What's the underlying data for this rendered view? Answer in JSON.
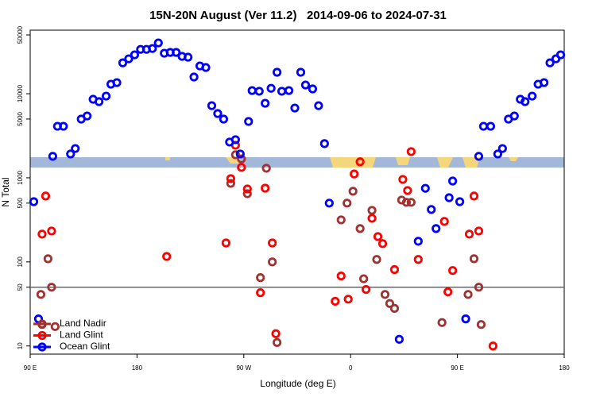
{
  "chart_data": {
    "type": "scatter",
    "title": "15N-20N August (Ver 11.2)   2014-09-06 to 2024-07-31",
    "xlabel": "Longitude (deg E)",
    "ylabel": "N Total",
    "xlim": [
      90,
      540
    ],
    "xticks": [
      {
        "value": 90,
        "label": "90 E"
      },
      180,
      {
        "value": 270,
        "label": "90 W"
      },
      {
        "value": 360,
        "label": "0"
      },
      {
        "value": 450,
        "label": "90 E"
      },
      {
        "value": 540,
        "label": "180"
      }
    ],
    "ylim": [
      8,
      57000
    ],
    "yscale": "log",
    "yticks": [
      10,
      50,
      100,
      500,
      1000,
      5000,
      10000,
      50000
    ],
    "hline": 50,
    "legend": "lower left",
    "series": [
      {
        "name": "Land Nadir",
        "color": "#a03232",
        "x": [
          99,
          105,
          108,
          100,
          111,
          259,
          263,
          268,
          273,
          289,
          294,
          284,
          298,
          352,
          357,
          362,
          368,
          371,
          378,
          382,
          389,
          393,
          397,
          403,
          407,
          411,
          437,
          459,
          464,
          468,
          470
        ],
        "values": [
          41,
          109,
          50,
          18,
          17,
          859,
          1880,
          1680,
          647,
          1300,
          100,
          65,
          11,
          316,
          500,
          692,
          249,
          63,
          410,
          107,
          41,
          32,
          28,
          544,
          511,
          511,
          19,
          41,
          109,
          50,
          18
        ]
      },
      {
        "name": "Land Glint",
        "color": "#ff0000",
        "x": [
          103,
          100,
          108,
          205,
          255,
          259,
          263,
          268,
          273,
          288,
          294,
          297,
          284,
          347,
          352,
          358,
          363,
          368,
          373,
          378,
          383,
          387,
          397,
          404,
          408,
          411,
          417,
          439,
          442,
          446,
          460,
          464,
          468,
          480
        ],
        "values": [
          607,
          214,
          233,
          116,
          168,
          977,
          2440,
          1330,
          738,
          753,
          168,
          14,
          43,
          34,
          68,
          36,
          1110,
          1550,
          47,
          330,
          200,
          165,
          81,
          957,
          706,
          2050,
          107,
          303,
          44,
          79,
          214,
          607,
          233,
          10
        ]
      },
      {
        "name": "Ocean Glint",
        "color": "#0000ff",
        "x": [
          93,
          97,
          109,
          113,
          118,
          124,
          128,
          133,
          138,
          143,
          148,
          154,
          158,
          163,
          168,
          173,
          178,
          183,
          188,
          193,
          198,
          203,
          208,
          213,
          218,
          223,
          228,
          233,
          238,
          243,
          248,
          253,
          258,
          263,
          267,
          274,
          277,
          283,
          288,
          293,
          298,
          302,
          308,
          313,
          318,
          322,
          328,
          333,
          338,
          342,
          401,
          417,
          423,
          428,
          432,
          443,
          446,
          452,
          457,
          468,
          472,
          478,
          484,
          488,
          493,
          498,
          503,
          507,
          513,
          518,
          523,
          528,
          533,
          537
        ],
        "values": [
          520,
          21,
          1800,
          4100,
          4100,
          1920,
          2230,
          4990,
          5440,
          8590,
          8050,
          9370,
          12980,
          13550,
          23300,
          26000,
          29000,
          33700,
          33700,
          34500,
          40200,
          30300,
          31000,
          31000,
          27800,
          27200,
          15800,
          21400,
          20500,
          7210,
          5810,
          4990,
          2660,
          2840,
          1920,
          4680,
          10900,
          10700,
          7700,
          11600,
          18000,
          10700,
          10900,
          6760,
          18000,
          12700,
          11400,
          7210,
          2550,
          500,
          12,
          176,
          750,
          420,
          249,
          580,
          916,
          520,
          21,
          1800,
          4100,
          4100,
          1920,
          2230,
          4990,
          5440,
          8590,
          8050,
          9370,
          12980,
          13550,
          23300,
          26000,
          29000
        ]
      }
    ]
  }
}
